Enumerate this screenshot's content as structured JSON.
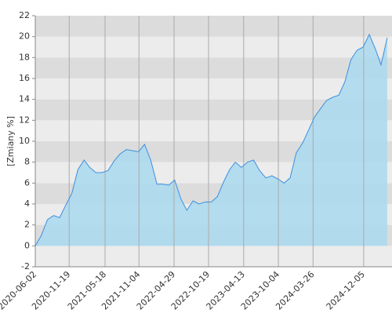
{
  "chart_data": {
    "type": "area",
    "y_label": "[Zmiany %]",
    "x": [
      "2020-06-02",
      "2020-07-02",
      "2020-08-02",
      "2020-09-02",
      "2020-10-02",
      "2020-11-02",
      "2020-12-02",
      "2021-01-02",
      "2021-02-02",
      "2021-03-02",
      "2021-04-02",
      "2021-05-02",
      "2021-06-02",
      "2021-07-02",
      "2021-08-02",
      "2021-09-02",
      "2021-10-02",
      "2021-11-02",
      "2021-12-02",
      "2022-01-02",
      "2022-02-02",
      "2022-03-02",
      "2022-04-02",
      "2022-05-02",
      "2022-06-02",
      "2022-07-02",
      "2022-08-02",
      "2022-09-02",
      "2022-10-02",
      "2022-11-02",
      "2022-12-02",
      "2023-01-02",
      "2023-02-02",
      "2023-03-02",
      "2023-04-02",
      "2023-05-02",
      "2023-06-02",
      "2023-07-02",
      "2023-08-02",
      "2023-09-02",
      "2023-10-02",
      "2023-11-02",
      "2023-12-02",
      "2024-01-02",
      "2024-02-02",
      "2024-03-02",
      "2024-04-02",
      "2024-05-02",
      "2024-06-02",
      "2024-07-02",
      "2024-08-02",
      "2024-09-02",
      "2024-10-02",
      "2024-11-02",
      "2024-12-02",
      "2025-01-02",
      "2025-02-02",
      "2025-03-02",
      "2025-04-02"
    ],
    "values": [
      0,
      1.0,
      2.5,
      2.9,
      2.7,
      3.9,
      5.0,
      7.3,
      8.2,
      7.5,
      7.0,
      7.0,
      7.2,
      8.1,
      8.8,
      9.2,
      9.1,
      9.0,
      9.7,
      8.2,
      5.9,
      5.9,
      5.8,
      6.3,
      4.5,
      3.4,
      4.3,
      4.0,
      4.2,
      4.2,
      4.7,
      6.1,
      7.3,
      8.0,
      7.5,
      8.0,
      8.2,
      7.2,
      6.5,
      6.7,
      6.4,
      6.0,
      6.5,
      8.9,
      9.8,
      11.0,
      12.3,
      13.1,
      13.9,
      14.2,
      14.4,
      15.7,
      17.8,
      18.7,
      19.0,
      20.2,
      18.8,
      17.3,
      19.9
    ],
    "line_color": "#3d8fe0",
    "fill_color": "#a9d9ee",
    "xlim": [
      "2020-06-02",
      "2025-04-26"
    ],
    "xticks": [
      "2020-06-02",
      "2020-11-19",
      "2021-05-18",
      "2021-11-04",
      "2022-04-29",
      "2022-10-19",
      "2023-04-13",
      "2023-10-04",
      "2024-03-26",
      "2024-12-05"
    ],
    "ylim": [
      -2,
      22
    ],
    "yticks": [
      -2,
      0,
      2,
      4,
      6,
      8,
      10,
      12,
      14,
      16,
      18,
      20,
      22
    ],
    "grid": true
  }
}
